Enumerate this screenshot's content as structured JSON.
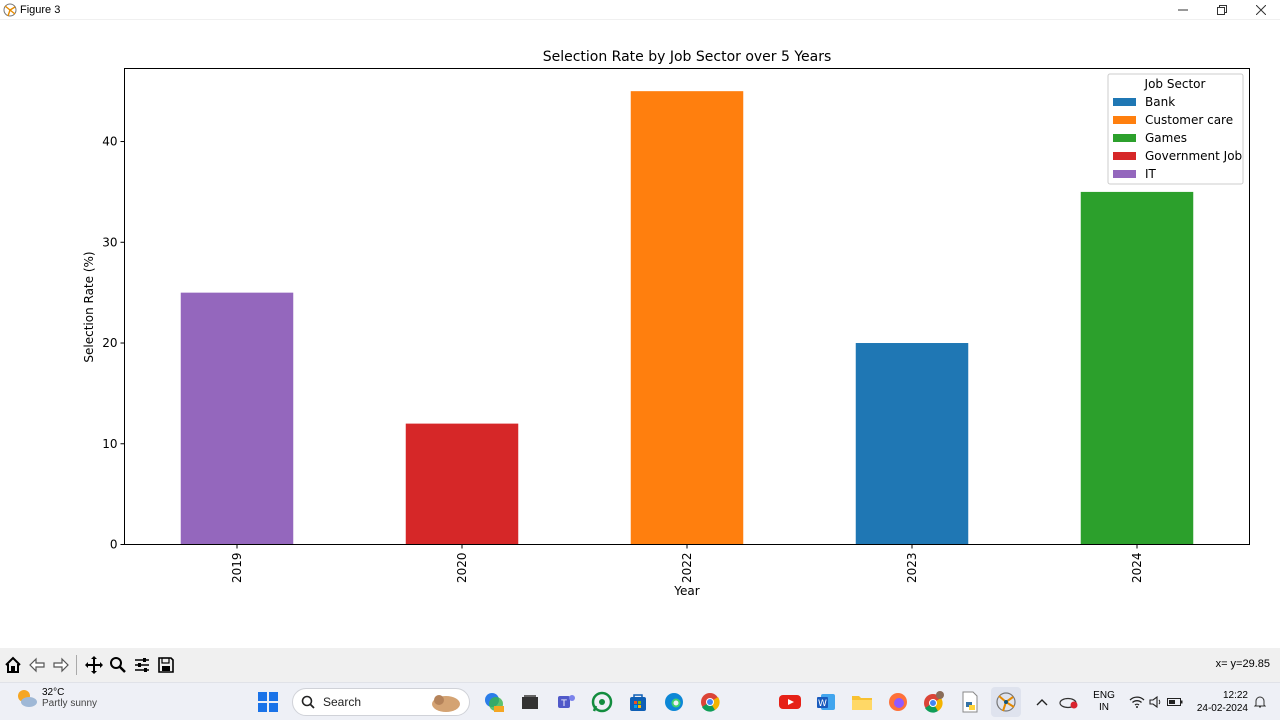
{
  "window": {
    "title": "Figure 3",
    "minimize_icon": "minimize-icon",
    "maximize_icon": "restore-icon",
    "close_icon": "close-icon"
  },
  "chart_data": {
    "type": "bar",
    "title": "Selection Rate by Job Sector over 5 Years",
    "xlabel": "Year",
    "ylabel": "Selection Rate (%)",
    "categories": [
      "2019",
      "2020",
      "2022",
      "2023",
      "2024"
    ],
    "values": [
      25,
      12,
      45,
      20,
      35
    ],
    "bar_sector": [
      "IT",
      "Government Job",
      "Customer care",
      "Bank",
      "Games"
    ],
    "ylim": [
      0,
      47.25
    ],
    "yticks": [
      0,
      10,
      20,
      30,
      40
    ],
    "grid": false,
    "legend": {
      "title": "Job Sector",
      "placement": "top-right",
      "entries": [
        {
          "name": "Bank",
          "color": "#1f77b4"
        },
        {
          "name": "Customer care",
          "color": "#ff7f0e"
        },
        {
          "name": "Games",
          "color": "#2ca02c"
        },
        {
          "name": "Government Job",
          "color": "#d62728"
        },
        {
          "name": "IT",
          "color": "#9467bd"
        }
      ]
    }
  },
  "toolbar": {
    "buttons": [
      "home-icon",
      "back-icon",
      "forward-icon",
      "pan-icon",
      "zoom-icon",
      "configure-icon",
      "save-icon"
    ],
    "coords": "x= y=29.85"
  },
  "taskbar": {
    "weather": {
      "temp": "32°C",
      "condition": "Partly sunny"
    },
    "search_label": "Search",
    "language": {
      "line1": "ENG",
      "line2": "IN"
    },
    "clock": {
      "time": "12:22",
      "date": "24-02-2024"
    }
  }
}
